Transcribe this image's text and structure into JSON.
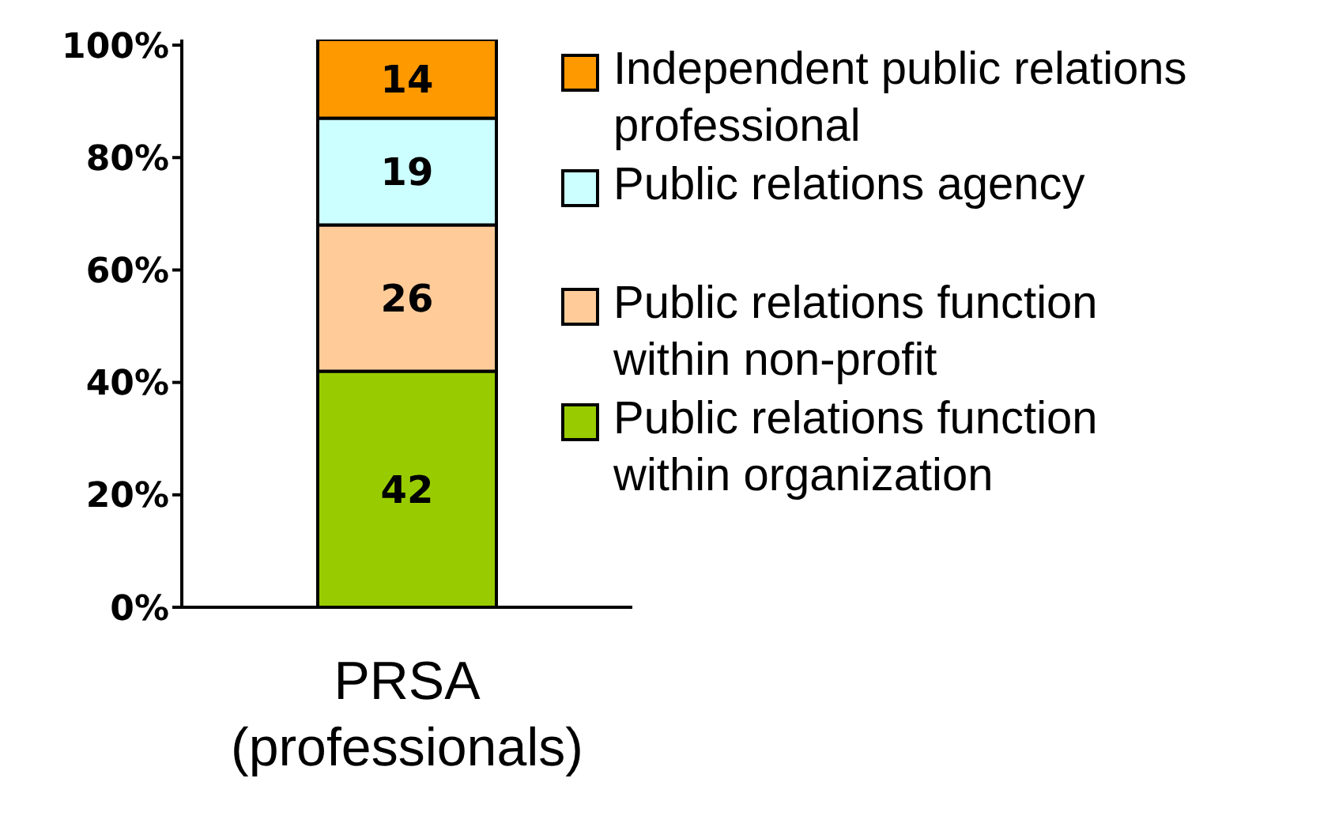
{
  "chart_data": {
    "type": "bar",
    "stacked": true,
    "categories": [
      "PRSA (professionals)"
    ],
    "series": [
      {
        "name": "Public relations function within organization",
        "color": "#99cc00",
        "values": [
          42
        ]
      },
      {
        "name": "Public relations function within non-profit",
        "color": "#ffcc99",
        "values": [
          26
        ]
      },
      {
        "name": "Public relations agency",
        "color": "#ccffff",
        "values": [
          19
        ]
      },
      {
        "name": "Independent public relations professional",
        "color": "#ff9900",
        "values": [
          14
        ]
      }
    ],
    "ylim": [
      0,
      101
    ],
    "yticks": [
      {
        "value": 0,
        "label": "0%"
      },
      {
        "value": 20,
        "label": "20%"
      },
      {
        "value": 40,
        "label": "40%"
      },
      {
        "value": 60,
        "label": "60%"
      },
      {
        "value": 80,
        "label": "80%"
      },
      {
        "value": 100,
        "label": "100%"
      }
    ],
    "data_labels": true,
    "legend": "right",
    "grid": false
  }
}
